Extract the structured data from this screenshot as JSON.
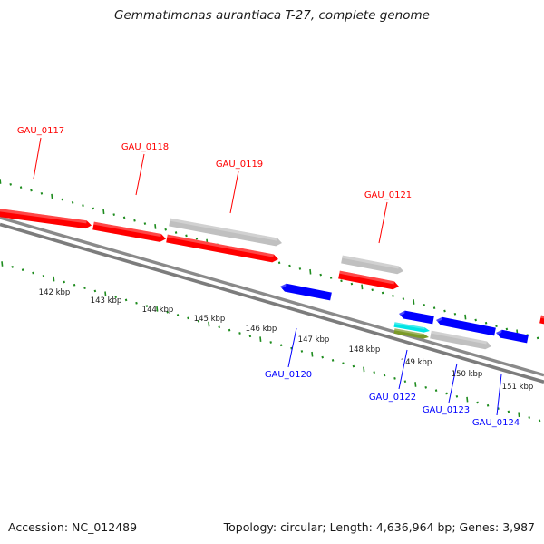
{
  "title": "Gemmatimonas aurantiaca T-27, complete genome",
  "footer": {
    "accession": "Accession: NC_012489",
    "summary": "Topology: circular; Length: 4,636,964 bp; Genes: 3,987"
  },
  "kbp_labels": [
    "142 kbp",
    "143 kbp",
    "144 kbp",
    "145 kbp",
    "146 kbp",
    "147 kbp",
    "148 kbp",
    "149 kbp",
    "150 kbp",
    "151 kbp"
  ],
  "colors": {
    "forward_gene": "#ff0000",
    "reverse_gene": "#0000ff",
    "other_gene": "#c0c0c0",
    "tick": "#1e8c1e",
    "backbone": "#808080",
    "extra_feature_cyan": "#00e5e5",
    "extra_feature_olive": "#7a9a28"
  },
  "genes_forward": [
    {
      "name": "GAU_0117"
    },
    {
      "name": "GAU_0118"
    },
    {
      "name": "GAU_0119"
    },
    {
      "name": "GAU_0121"
    }
  ],
  "genes_reverse": [
    {
      "name": "GAU_0120"
    },
    {
      "name": "GAU_0122"
    },
    {
      "name": "GAU_0123"
    },
    {
      "name": "GAU_0124"
    }
  ]
}
